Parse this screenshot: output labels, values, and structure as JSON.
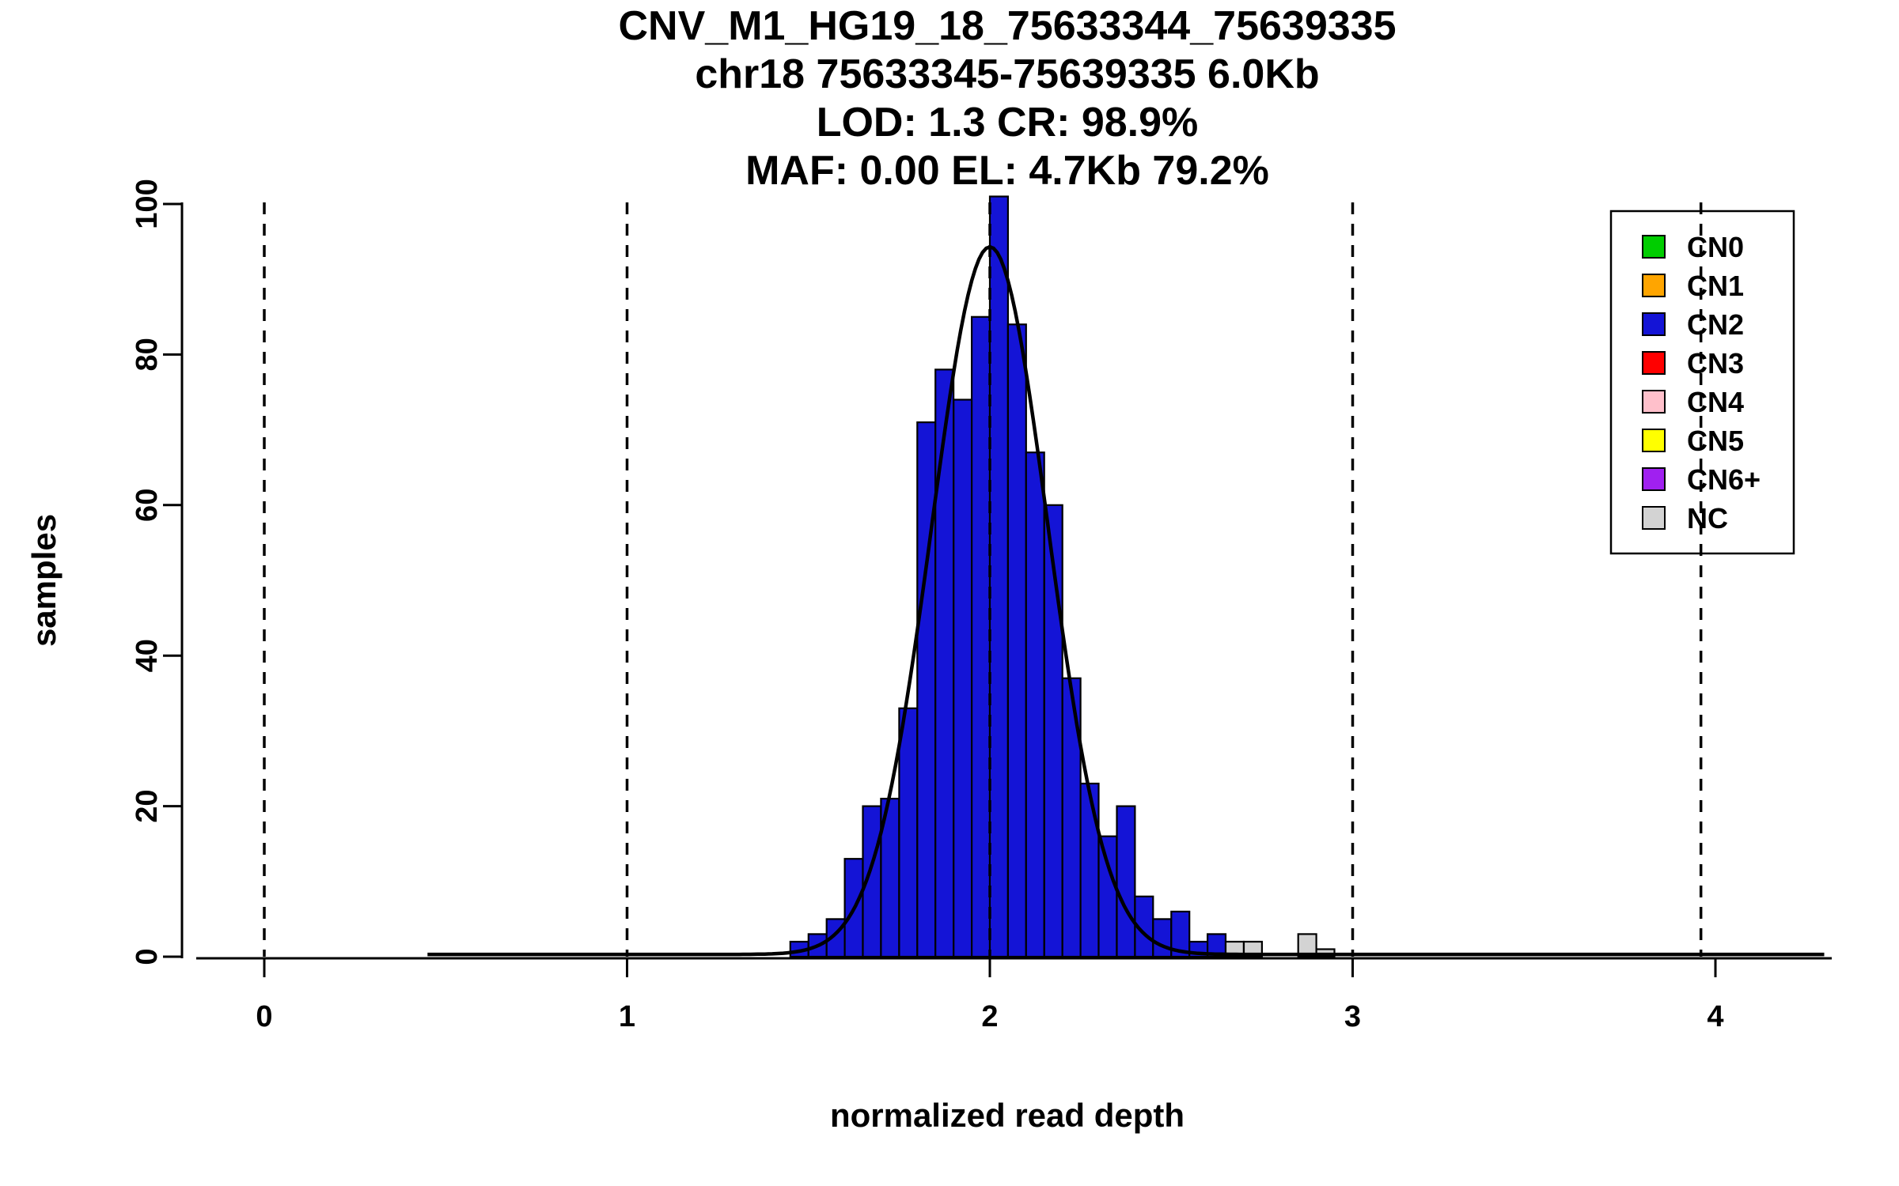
{
  "figure": {
    "background": "#ffffff"
  },
  "chart_data": {
    "type": "bar",
    "subtype": "histogram-with-density-curve",
    "title_lines": [
      "CNV_M1_HG19_18_75633344_75639335",
      "chr18 75633345-75639335 6.0Kb",
      "LOD: 1.3 CR: 98.9%",
      "MAF: 0.00 EL: 4.7Kb 79.2%"
    ],
    "xlabel": "normalized read depth",
    "ylabel": "samples",
    "xlim": [
      -0.19,
      4.32
    ],
    "ylim": [
      0,
      100
    ],
    "x_ticks": [
      0,
      1,
      2,
      3,
      4
    ],
    "y_ticks": [
      0,
      20,
      40,
      60,
      80,
      100
    ],
    "dashed_lines_x": [
      0,
      1,
      2,
      3,
      3.96
    ],
    "grid": false,
    "bin_width": 0.05,
    "bars": [
      {
        "x": 1.45,
        "count": 2,
        "cn": "CN2"
      },
      {
        "x": 1.5,
        "count": 3,
        "cn": "CN2"
      },
      {
        "x": 1.55,
        "count": 5,
        "cn": "CN2"
      },
      {
        "x": 1.6,
        "count": 13,
        "cn": "CN2"
      },
      {
        "x": 1.65,
        "count": 20,
        "cn": "CN2"
      },
      {
        "x": 1.7,
        "count": 21,
        "cn": "CN2"
      },
      {
        "x": 1.75,
        "count": 33,
        "cn": "CN2"
      },
      {
        "x": 1.8,
        "count": 71,
        "cn": "CN2"
      },
      {
        "x": 1.85,
        "count": 78,
        "cn": "CN2"
      },
      {
        "x": 1.9,
        "count": 74,
        "cn": "CN2"
      },
      {
        "x": 1.95,
        "count": 85,
        "cn": "CN2"
      },
      {
        "x": 2.0,
        "count": 101,
        "cn": "CN2"
      },
      {
        "x": 2.05,
        "count": 84,
        "cn": "CN2"
      },
      {
        "x": 2.1,
        "count": 67,
        "cn": "CN2"
      },
      {
        "x": 2.15,
        "count": 60,
        "cn": "CN2"
      },
      {
        "x": 2.2,
        "count": 37,
        "cn": "CN2"
      },
      {
        "x": 2.25,
        "count": 23,
        "cn": "CN2"
      },
      {
        "x": 2.3,
        "count": 16,
        "cn": "CN2"
      },
      {
        "x": 2.35,
        "count": 20,
        "cn": "CN2"
      },
      {
        "x": 2.4,
        "count": 8,
        "cn": "CN2"
      },
      {
        "x": 2.45,
        "count": 5,
        "cn": "CN2"
      },
      {
        "x": 2.5,
        "count": 6,
        "cn": "CN2"
      },
      {
        "x": 2.55,
        "count": 2,
        "cn": "CN2"
      },
      {
        "x": 2.6,
        "count": 3,
        "cn": "CN2"
      },
      {
        "x": 2.65,
        "count": 2,
        "cn": "NC"
      },
      {
        "x": 2.7,
        "count": 2,
        "cn": "NC"
      },
      {
        "x": 2.85,
        "count": 3,
        "cn": "NC"
      },
      {
        "x": 2.9,
        "count": 1,
        "cn": "NC"
      }
    ],
    "curve": {
      "shape": "gaussian",
      "mu": 2.0,
      "sigma": 0.16,
      "peak": 94,
      "baseline": 0.3,
      "x_range": [
        0.45,
        4.3
      ]
    },
    "legend": {
      "position": "top-right",
      "entries": [
        {
          "label": "CN0",
          "color": "#00CD00"
        },
        {
          "label": "CN1",
          "color": "#FFA500"
        },
        {
          "label": "CN2",
          "color": "#1414D6"
        },
        {
          "label": "CN3",
          "color": "#FF0000"
        },
        {
          "label": "CN4",
          "color": "#FFC0CB"
        },
        {
          "label": "CN5",
          "color": "#FFFF00"
        },
        {
          "label": "CN6+",
          "color": "#A020F0"
        },
        {
          "label": "NC",
          "color": "#D3D3D3"
        }
      ]
    },
    "colors": {
      "axis": "#000000",
      "curve": "#000000",
      "dashed_line": "#000000",
      "bar_stroke": "#000000"
    }
  }
}
